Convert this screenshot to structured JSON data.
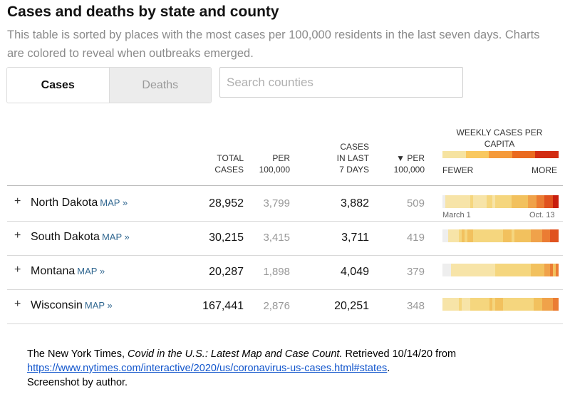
{
  "header": {
    "title": "Cases and deaths by state and county",
    "subtitle": "This table is sorted by places with the most cases per 100,000 residents in the last seven days. Charts are colored to reveal when outbreaks emerged."
  },
  "tabs": [
    {
      "label": "Cases",
      "active": true
    },
    {
      "label": "Deaths",
      "active": false
    }
  ],
  "search": {
    "placeholder": "Search counties"
  },
  "columns": {
    "total_cases": [
      "TOTAL",
      "CASES"
    ],
    "per_100k": [
      "PER",
      "100,000"
    ],
    "cases_last7": [
      "CASES",
      "IN LAST",
      "7 DAYS"
    ],
    "per_100k_sorted": [
      "▼ PER",
      "100,000"
    ],
    "weekly": "WEEKLY CASES PER CAPITA",
    "legend_low": "FEWER",
    "legend_high": "MORE"
  },
  "legend_colors": [
    "#f6e3a0",
    "#f9c85f",
    "#f59a3a",
    "#ea6a1f",
    "#d22c12"
  ],
  "axis": {
    "start": "March 1",
    "end": "Oct. 13"
  },
  "rows": [
    {
      "state": "North Dakota",
      "map": "MAP »",
      "total_cases": "28,952",
      "per_100k": "3,799",
      "cases_last7": "3,882",
      "per_100k_7d": "509",
      "weekly": [
        0,
        1,
        1,
        1,
        1,
        1,
        1,
        1,
        1,
        1,
        2,
        1,
        1,
        1,
        1,
        1,
        2,
        2,
        1,
        2,
        2,
        2,
        2,
        2,
        2,
        3,
        3,
        3,
        3,
        3,
        3,
        4,
        4,
        4,
        5,
        5,
        5,
        6,
        6,
        6,
        7,
        7
      ]
    },
    {
      "state": "South Dakota",
      "map": "MAP »",
      "total_cases": "30,215",
      "per_100k": "3,415",
      "cases_last7": "3,711",
      "per_100k_7d": "419",
      "weekly": [
        0,
        0,
        1,
        1,
        1,
        1,
        2,
        3,
        2,
        3,
        3,
        2,
        2,
        2,
        2,
        2,
        2,
        2,
        2,
        2,
        2,
        2,
        3,
        3,
        3,
        2,
        3,
        3,
        3,
        3,
        3,
        3,
        4,
        4,
        4,
        4,
        5,
        5,
        5,
        6,
        6,
        6
      ]
    },
    {
      "state": "Montana",
      "map": "MAP »",
      "total_cases": "20,287",
      "per_100k": "1,898",
      "cases_last7": "4,049",
      "per_100k_7d": "379",
      "weekly": [
        0,
        0,
        0,
        1,
        1,
        1,
        1,
        1,
        1,
        1,
        1,
        1,
        1,
        1,
        1,
        1,
        1,
        1,
        1,
        2,
        2,
        2,
        2,
        2,
        2,
        2,
        2,
        2,
        2,
        2,
        2,
        2,
        3,
        3,
        3,
        3,
        3,
        4,
        4,
        5,
        3,
        5
      ]
    },
    {
      "state": "Wisconsin",
      "map": "MAP »",
      "total_cases": "167,441",
      "per_100k": "2,876",
      "cases_last7": "20,251",
      "per_100k_7d": "348",
      "weekly": [
        1,
        1,
        1,
        1,
        1,
        1,
        2,
        1,
        1,
        1,
        2,
        2,
        2,
        2,
        2,
        2,
        2,
        3,
        2,
        3,
        3,
        3,
        2,
        2,
        2,
        2,
        2,
        2,
        2,
        2,
        2,
        2,
        2,
        3,
        3,
        3,
        4,
        4,
        4,
        4,
        5,
        5
      ]
    }
  ],
  "weekly_palette": [
    "#eeeeee",
    "#f7e4a8",
    "#f5d67e",
    "#f2c15e",
    "#f0a24a",
    "#eb7c33",
    "#e0521f",
    "#c81e0e"
  ],
  "caption": {
    "line1_prefix": "The New York Times, ",
    "line1_title": "Covid in the U.S.: Latest Map and Case Count.",
    "line1_suffix": " Retrieved 10/14/20 from",
    "link": "https://www.nytimes.com/interactive/2020/us/coronavirus-us-cases.html#states",
    "link_suffix": ".",
    "line3": "Screenshot by author."
  }
}
